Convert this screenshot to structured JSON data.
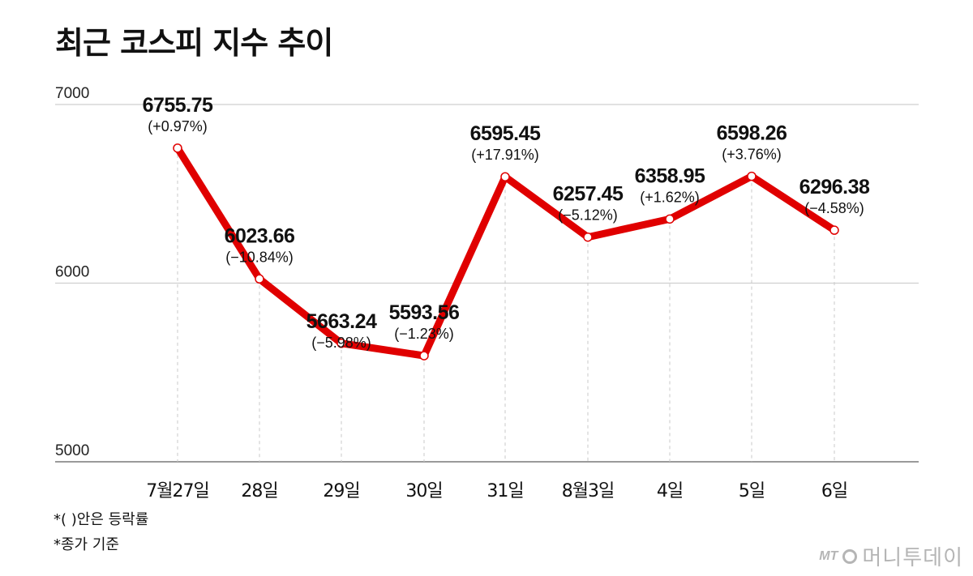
{
  "title": "최근 코스피 지수 추이",
  "chart_data": {
    "type": "line",
    "categories": [
      "7월27일",
      "28일",
      "29일",
      "30일",
      "31일",
      "8월3일",
      "4일",
      "5일",
      "6일"
    ],
    "values": [
      6755.75,
      6023.66,
      5663.24,
      5593.56,
      6595.45,
      6257.45,
      6358.95,
      6598.26,
      6296.38
    ],
    "value_labels": [
      "6755.75",
      "6023.66",
      "5663.24",
      "5593.56",
      "6595.45",
      "6257.45",
      "6358.95",
      "6598.26",
      "6296.38"
    ],
    "change_labels": [
      "(+0.97%)",
      "(−10.84%)",
      "(−5.98%)",
      "(−1.23%)",
      "(+17.91%)",
      "(−5.12%)",
      "(+1.62%)",
      "(+3.76%)",
      "(−4.58%)"
    ],
    "yticks": [
      "7000",
      "6000",
      "5000"
    ],
    "ylim": [
      5000,
      7000
    ],
    "grid": true,
    "line_color": "#e00000"
  },
  "notes": [
    "*( )안은 등락률",
    "*종가 기준"
  ],
  "logo": {
    "mark": "MT",
    "name": "머니투데이"
  }
}
